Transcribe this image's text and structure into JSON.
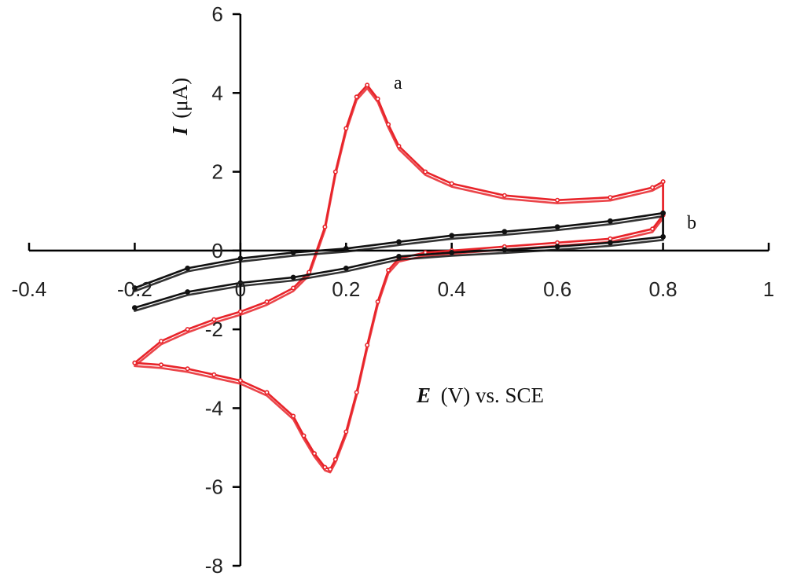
{
  "chart_data": {
    "type": "line",
    "title": "",
    "xlabel": {
      "variable": "E",
      "unit": "(V) vs. SCE"
    },
    "ylabel": {
      "variable": "I",
      "unit": "(μA)"
    },
    "xlim": [
      -0.4,
      1
    ],
    "ylim": [
      -8,
      6
    ],
    "x_ticks": [
      "-0.4",
      "-0.2",
      "0",
      "0.2",
      "0.4",
      "0.6",
      "0.8",
      "1"
    ],
    "y_ticks": [
      "6",
      "4",
      "2",
      "0",
      "-2",
      "-4",
      "-6",
      "-8"
    ],
    "x_tick_values": [
      -0.4,
      -0.2,
      0,
      0.2,
      0.4,
      0.6,
      0.8,
      1
    ],
    "y_tick_values": [
      6,
      4,
      2,
      0,
      -2,
      -4,
      -6,
      -8
    ],
    "grid": false,
    "legend": "none",
    "series": [
      {
        "name": "a",
        "color": "#e8242a",
        "x": [
          -0.2,
          -0.15,
          -0.1,
          -0.05,
          0.0,
          0.05,
          0.1,
          0.13,
          0.16,
          0.18,
          0.2,
          0.22,
          0.24,
          0.26,
          0.28,
          0.3,
          0.35,
          0.4,
          0.5,
          0.6,
          0.7,
          0.78,
          0.8,
          0.8,
          0.78,
          0.7,
          0.6,
          0.5,
          0.4,
          0.35,
          0.3,
          0.28,
          0.26,
          0.24,
          0.22,
          0.2,
          0.18,
          0.17,
          0.16,
          0.14,
          0.12,
          0.1,
          0.05,
          0.0,
          -0.05,
          -0.1,
          -0.15,
          -0.2
        ],
        "y": [
          -2.85,
          -2.3,
          -2.0,
          -1.75,
          -1.55,
          -1.3,
          -0.95,
          -0.55,
          0.6,
          2.0,
          3.1,
          3.9,
          4.2,
          3.85,
          3.2,
          2.65,
          2.0,
          1.7,
          1.4,
          1.28,
          1.35,
          1.6,
          1.75,
          0.9,
          0.55,
          0.3,
          0.2,
          0.1,
          0.0,
          -0.05,
          -0.2,
          -0.5,
          -1.3,
          -2.4,
          -3.6,
          -4.6,
          -5.3,
          -5.55,
          -5.5,
          -5.15,
          -4.7,
          -4.2,
          -3.6,
          -3.3,
          -3.15,
          -3.0,
          -2.9,
          -2.85
        ]
      },
      {
        "name": "b",
        "color": "#111111",
        "x": [
          -0.2,
          -0.1,
          0.0,
          0.1,
          0.2,
          0.3,
          0.4,
          0.5,
          0.6,
          0.7,
          0.8,
          0.8,
          0.7,
          0.6,
          0.5,
          0.4,
          0.3,
          0.2,
          0.1,
          0.0,
          -0.1,
          -0.2
        ],
        "y": [
          -1.45,
          -1.05,
          -0.82,
          -0.68,
          -0.45,
          -0.15,
          -0.05,
          0.02,
          0.1,
          0.2,
          0.35,
          0.95,
          0.75,
          0.6,
          0.48,
          0.38,
          0.22,
          0.05,
          -0.05,
          -0.2,
          -0.45,
          -0.95
        ]
      }
    ]
  }
}
